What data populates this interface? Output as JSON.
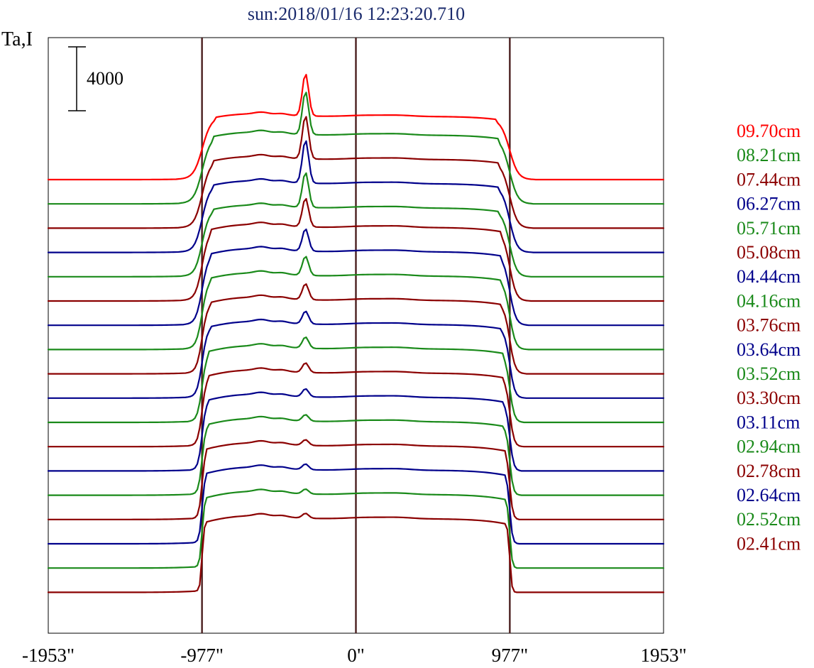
{
  "chart_data": {
    "type": "line",
    "title": "sun:2018/01/16 12:23:20.710",
    "ylabel": "Ta,I",
    "scale_bar_label": "4000",
    "scale_bar_value": 4000,
    "xlim": [
      -1953,
      1953
    ],
    "x_ticks": [
      {
        "value": -1953,
        "label": "-1953\""
      },
      {
        "value": -977,
        "label": "-977\""
      },
      {
        "value": 0,
        "label": "0\""
      },
      {
        "value": 977,
        "label": "977\""
      },
      {
        "value": 1953,
        "label": "1953\""
      }
    ],
    "vertical_lines": [
      -977,
      0,
      977
    ],
    "vertical_line_color": "#4a1f1f",
    "grid": false,
    "legend_position": "right",
    "series": [
      {
        "name": "09.70cm",
        "color": "#ff0000",
        "background_level": 0,
        "disk_level": 3950,
        "peak_level": 6600
      },
      {
        "name": "08.21cm",
        "color": "#1a8a1a",
        "background_level": 0,
        "disk_level": 4300,
        "peak_level": 7000
      },
      {
        "name": "07.44cm",
        "color": "#8b0000",
        "background_level": 0,
        "disk_level": 4300,
        "peak_level": 7000
      },
      {
        "name": "06.27cm",
        "color": "#00008b",
        "background_level": 0,
        "disk_level": 4300,
        "peak_level": 7000
      },
      {
        "name": "05.71cm",
        "color": "#1a8a1a",
        "background_level": 0,
        "disk_level": 4300,
        "peak_level": 6500
      },
      {
        "name": "05.08cm",
        "color": "#8b0000",
        "background_level": 0,
        "disk_level": 4600,
        "peak_level": 6400
      },
      {
        "name": "04.44cm",
        "color": "#00008b",
        "background_level": 0,
        "disk_level": 4600,
        "peak_level": 6000
      },
      {
        "name": "04.16cm",
        "color": "#1a8a1a",
        "background_level": 0,
        "disk_level": 4600,
        "peak_level": 5800
      },
      {
        "name": "03.76cm",
        "color": "#8b0000",
        "background_level": 0,
        "disk_level": 4600,
        "peak_level": 5600
      },
      {
        "name": "03.64cm",
        "color": "#00008b",
        "background_level": 0,
        "disk_level": 4600,
        "peak_level": 5400
      },
      {
        "name": "03.52cm",
        "color": "#1a8a1a",
        "background_level": 0,
        "disk_level": 4600,
        "peak_level": 5300
      },
      {
        "name": "03.30cm",
        "color": "#8b0000",
        "background_level": 0,
        "disk_level": 4600,
        "peak_level": 5200
      },
      {
        "name": "03.11cm",
        "color": "#00008b",
        "background_level": 0,
        "disk_level": 4600,
        "peak_level": 5100
      },
      {
        "name": "02.94cm",
        "color": "#1a8a1a",
        "background_level": 0,
        "disk_level": 4600,
        "peak_level": 5000
      },
      {
        "name": "02.78cm",
        "color": "#8b0000",
        "background_level": 0,
        "disk_level": 4600,
        "peak_level": 4950
      },
      {
        "name": "02.64cm",
        "color": "#00008b",
        "background_level": 0,
        "disk_level": 4600,
        "peak_level": 4950
      },
      {
        "name": "02.52cm",
        "color": "#1a8a1a",
        "background_level": 0,
        "disk_level": 4600,
        "peak_level": 4900
      },
      {
        "name": "02.41cm",
        "color": "#8b0000",
        "background_level": 0,
        "disk_level": 4600,
        "peak_level": 4900
      }
    ]
  }
}
